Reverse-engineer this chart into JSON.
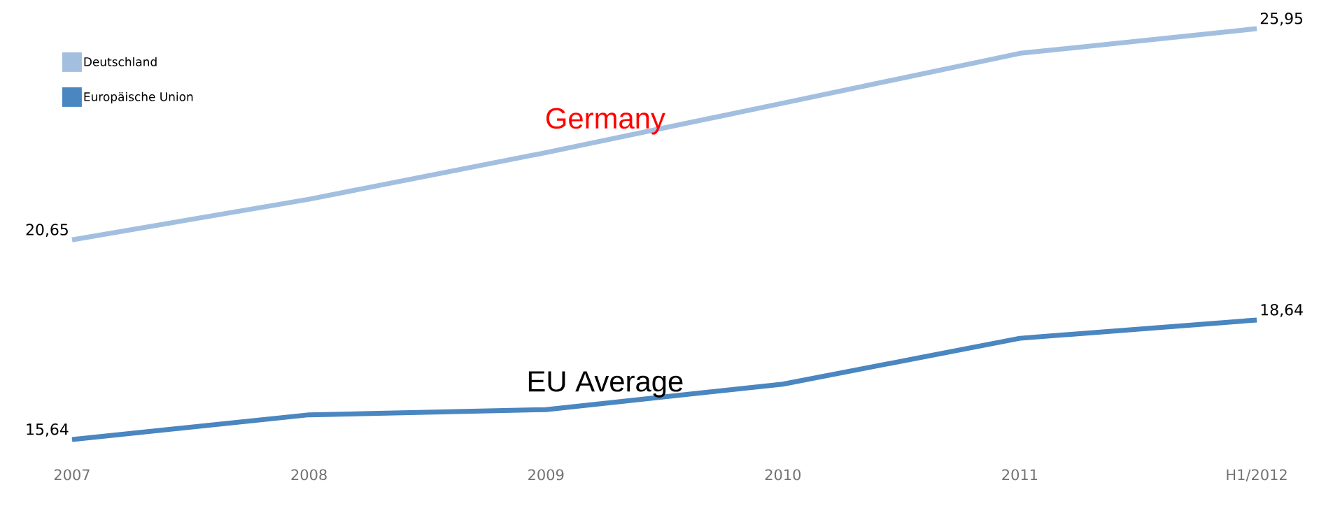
{
  "chart_data": {
    "type": "line",
    "categories": [
      "2007",
      "2008",
      "2009",
      "2010",
      "2011",
      "H1/2012"
    ],
    "series": [
      {
        "name": "Deutschland",
        "color": "#a3bfe0",
        "values": [
          20.65,
          21.67,
          22.84,
          24.08,
          25.33,
          25.95
        ],
        "value_labels": [
          "20,65",
          null,
          null,
          null,
          null,
          "25,95"
        ]
      },
      {
        "name": "Europäische Union",
        "color": "#4a86c0",
        "values": [
          15.64,
          16.26,
          16.39,
          17.03,
          18.18,
          18.64
        ],
        "value_labels": [
          "15,64",
          null,
          null,
          null,
          null,
          "18,64"
        ]
      }
    ],
    "annotations": [
      "Germany",
      "EU Average"
    ],
    "legend": "top left",
    "grid": false,
    "marker": "none",
    "line_style": "solid"
  }
}
